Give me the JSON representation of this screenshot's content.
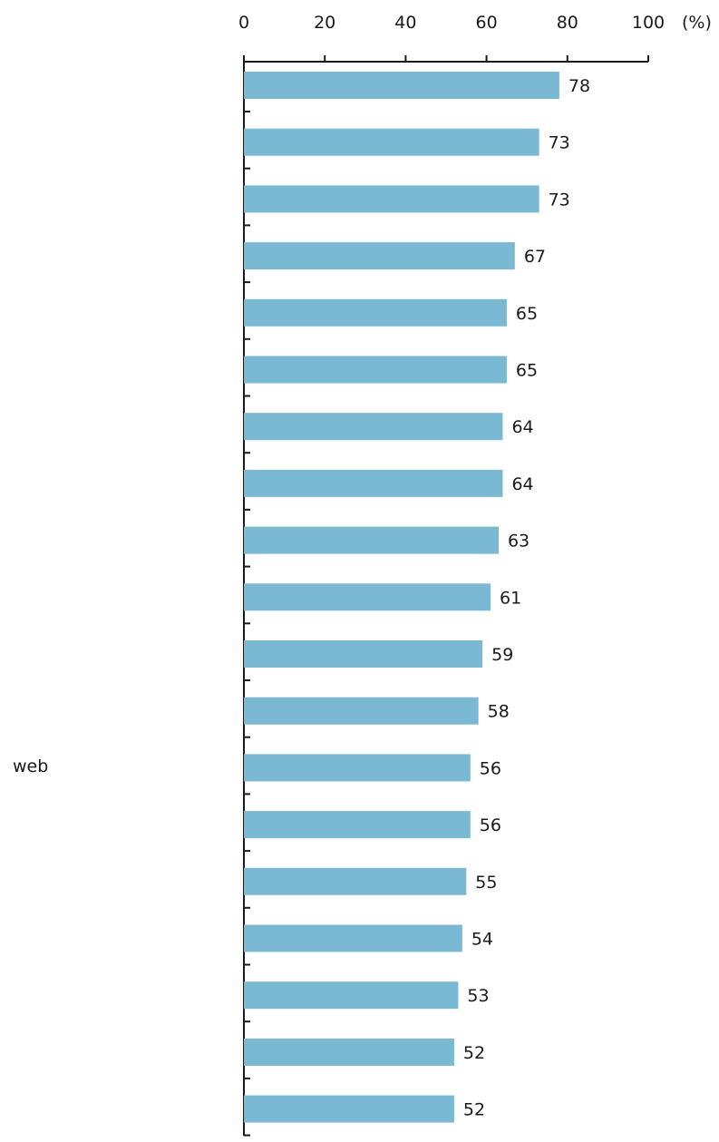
{
  "chart_data": {
    "type": "bar",
    "orientation": "horizontal",
    "categories": [
      "",
      "",
      "",
      "",
      "",
      "",
      "",
      "",
      "",
      "",
      "",
      "",
      "web",
      "",
      "",
      "",
      "",
      "",
      ""
    ],
    "values": [
      78,
      73,
      73,
      67,
      65,
      65,
      64,
      64,
      63,
      61,
      59,
      58,
      56,
      56,
      55,
      54,
      53,
      52,
      52
    ],
    "xlim": [
      0,
      100
    ],
    "x_ticks": [
      0,
      20,
      40,
      60,
      80,
      100
    ],
    "x_unit": "(%)",
    "axis_position": "top",
    "grid": false,
    "bar_color": "#7ab8d3",
    "axis_color": "#1a1a1a"
  }
}
